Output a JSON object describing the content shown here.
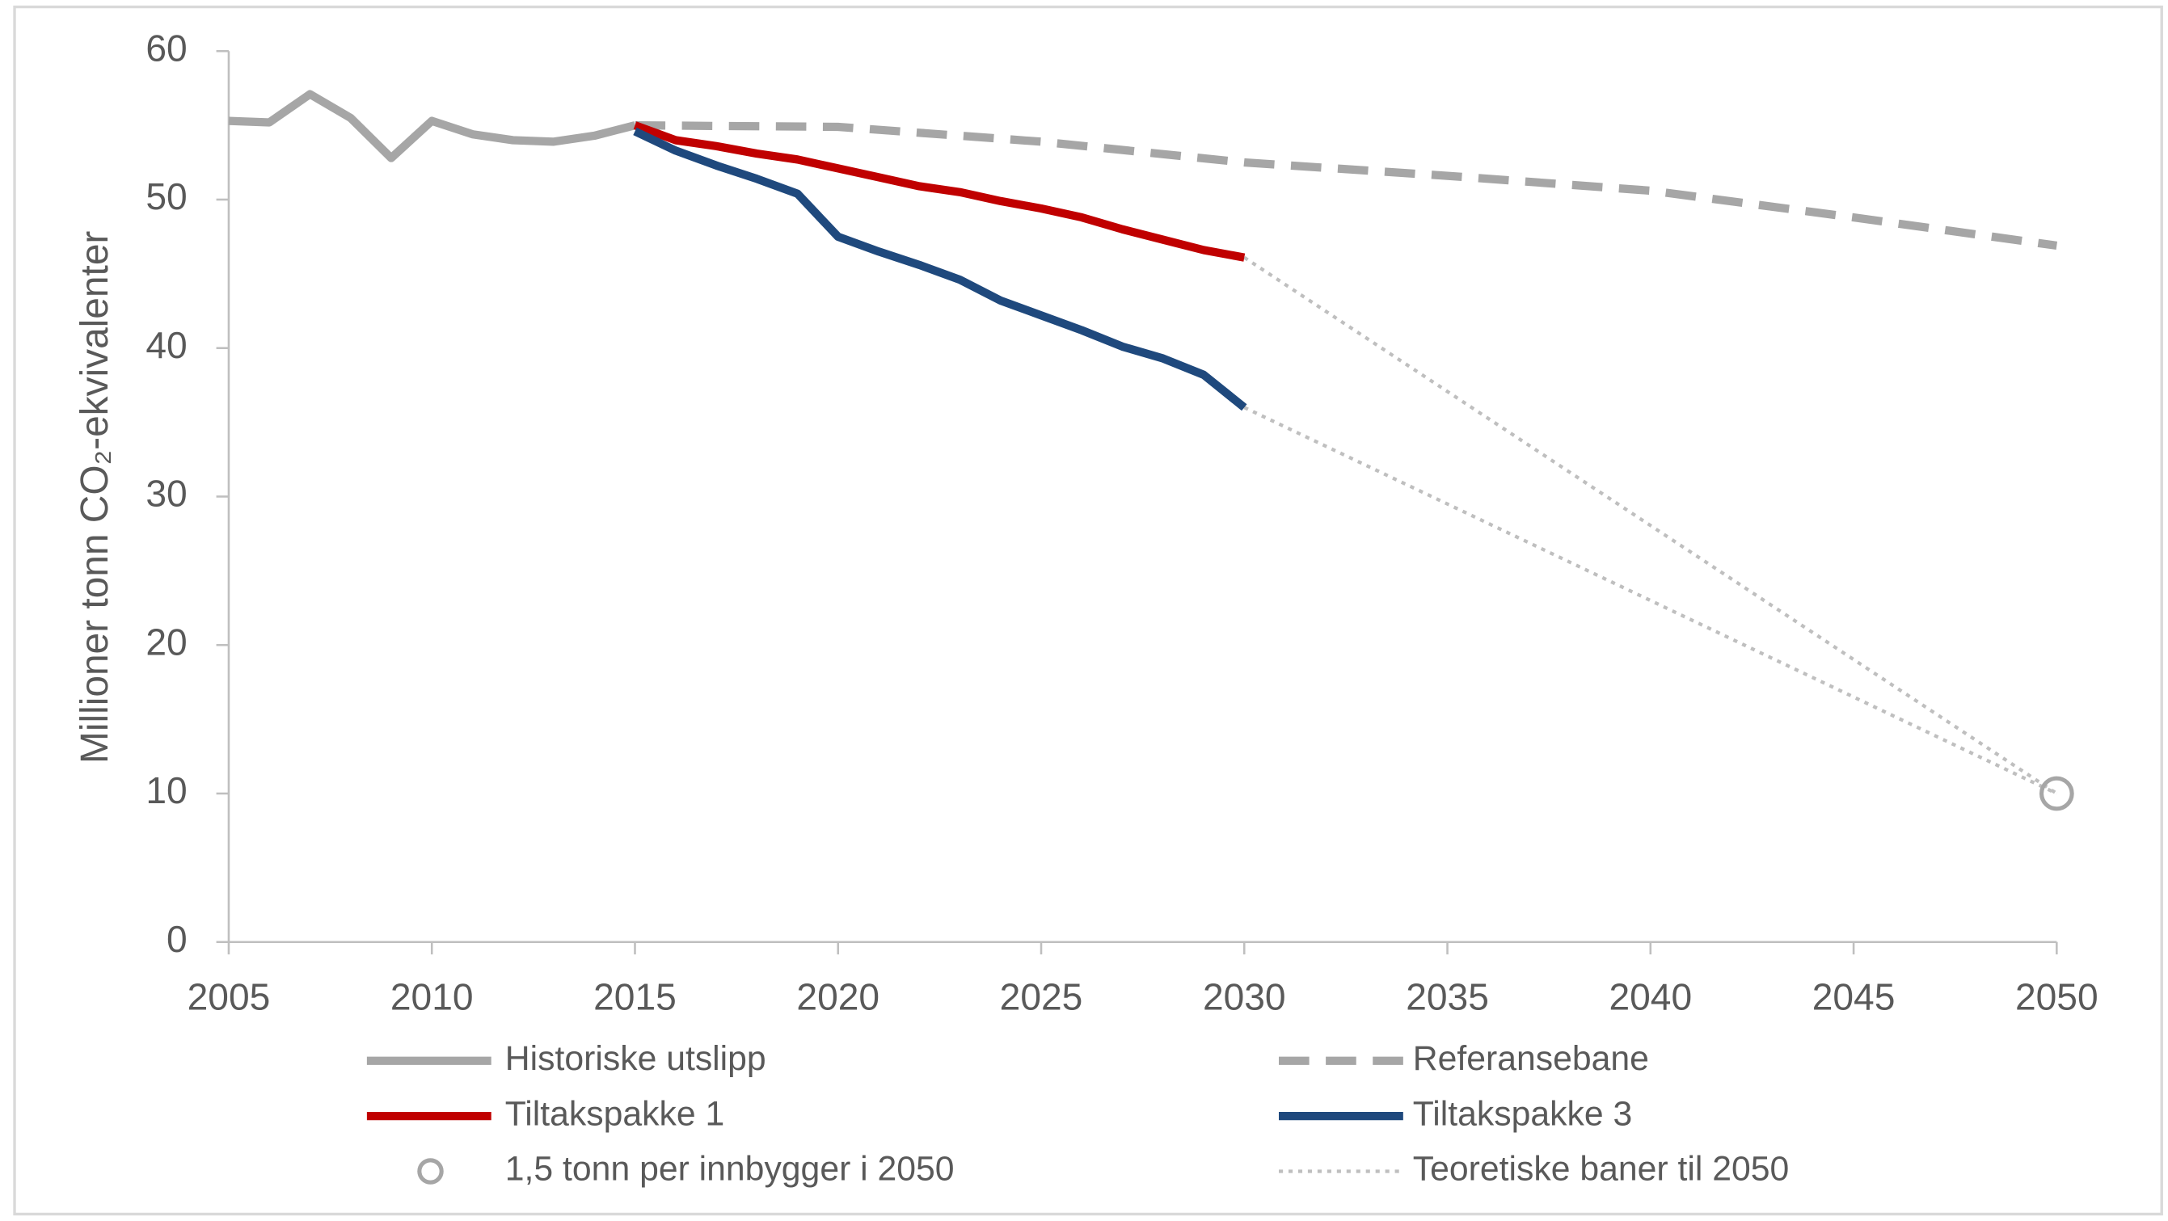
{
  "chart_data": {
    "type": "line",
    "y_label": "Millioner tonn CO₂-ekvivalenter",
    "xlim": [
      2005,
      2050
    ],
    "xticks": [
      2005,
      2010,
      2015,
      2020,
      2025,
      2030,
      2035,
      2040,
      2045,
      2050
    ],
    "ylim": [
      0,
      60
    ],
    "yticks": [
      0,
      10,
      20,
      30,
      40,
      50,
      60
    ],
    "grid": false,
    "legend": "bottom",
    "series": [
      {
        "name": "Historiske utslipp",
        "color": "#a6a6a6",
        "dash": "solid",
        "x": [
          2005,
          2006,
          2007,
          2008,
          2009,
          2010,
          2011,
          2012,
          2013,
          2014,
          2015
        ],
        "values": [
          55.3,
          55.2,
          57.1,
          55.5,
          52.8,
          55.3,
          54.4,
          54.0,
          53.9,
          54.3,
          55.0
        ]
      },
      {
        "name": "Referansebane",
        "color": "#a6a6a6",
        "dash": "dashed",
        "x": [
          2015,
          2020,
          2025,
          2030,
          2035,
          2040,
          2045,
          2050
        ],
        "values": [
          55.0,
          54.9,
          53.9,
          52.5,
          51.6,
          50.6,
          48.8,
          46.9
        ]
      },
      {
        "name": "Tiltakspakke 1",
        "color": "#c00000",
        "dash": "solid",
        "x": [
          2015,
          2016,
          2017,
          2018,
          2019,
          2020,
          2021,
          2022,
          2023,
          2024,
          2025,
          2026,
          2027,
          2028,
          2029,
          2030
        ],
        "values": [
          55.0,
          54.0,
          53.6,
          53.1,
          52.7,
          52.1,
          51.5,
          50.9,
          50.5,
          49.9,
          49.4,
          48.8,
          48.0,
          47.3,
          46.6,
          46.1
        ]
      },
      {
        "name": "Tiltakspakke 3",
        "color": "#1f497d",
        "dash": "solid",
        "x": [
          2015,
          2016,
          2017,
          2018,
          2019,
          2020,
          2021,
          2022,
          2023,
          2024,
          2025,
          2026,
          2027,
          2028,
          2029,
          2030
        ],
        "values": [
          54.6,
          53.3,
          52.3,
          51.4,
          50.4,
          47.5,
          46.5,
          45.6,
          44.6,
          43.2,
          42.2,
          41.2,
          40.1,
          39.3,
          38.2,
          36.0
        ]
      }
    ],
    "target": {
      "name": "1,5 tonn per innbygger i 2050",
      "color": "#a6a6a6",
      "marker": "circle",
      "x": [
        2050
      ],
      "values": [
        10
      ]
    },
    "theoretical": {
      "name": "Teoretiske baner til 2050",
      "color": "#bfbfbf",
      "dash": "dotted",
      "lines": [
        {
          "x": [
            2030,
            2050
          ],
          "values": [
            46.1,
            10
          ]
        },
        {
          "x": [
            2030,
            2050
          ],
          "values": [
            36.0,
            10
          ]
        }
      ]
    }
  }
}
